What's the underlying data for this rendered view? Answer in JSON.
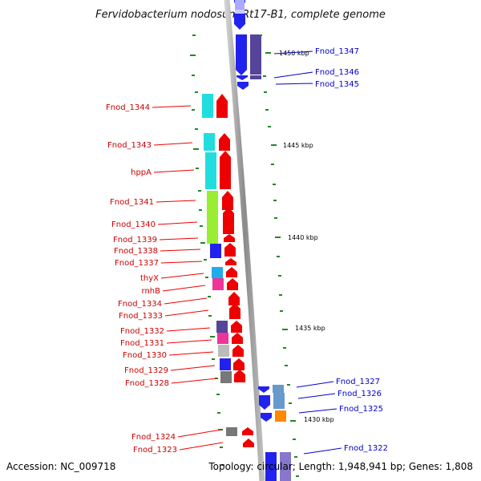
{
  "title": "Fervidobacterium nodosum Rt17-B1, complete genome",
  "footer": {
    "accession": "Accession: NC_009718",
    "topology": "Topology: circular; Length: 1,948,941 bp; Genes: 1,808"
  },
  "scale_labels": [
    "1450 kbp",
    "1445 kbp",
    "1440 kbp",
    "1435 kbp",
    "1430 kbp"
  ],
  "left_labels": [
    "Fnod_1344",
    "Fnod_1343",
    "hppA",
    "Fnod_1341",
    "Fnod_1340",
    "Fnod_1339",
    "Fnod_1338",
    "Fnod_1337",
    "thyX",
    "rnhB",
    "Fnod_1334",
    "Fnod_1333",
    "Fnod_1332",
    "Fnod_1331",
    "Fnod_1330",
    "Fnod_1329",
    "Fnod_1328",
    "Fnod_1324",
    "Fnod_1323"
  ],
  "right_labels": [
    "Fnod_1347",
    "Fnod_1346",
    "Fnod_1345",
    "Fnod_1327",
    "Fnod_1326",
    "Fnod_1325",
    "Fnod_1322"
  ],
  "colors": {
    "forward_strand": "#ee0000",
    "reverse_strand": "#0000ee",
    "backbone": "#888888",
    "tick": "#228822",
    "cyan": "#22dddd",
    "lime": "#99ee33",
    "blue": "#2222ee",
    "magenta": "#ee3399",
    "purple": "#554499",
    "gray": "#777777",
    "orange": "#ff8800",
    "steel": "#6699cc"
  }
}
